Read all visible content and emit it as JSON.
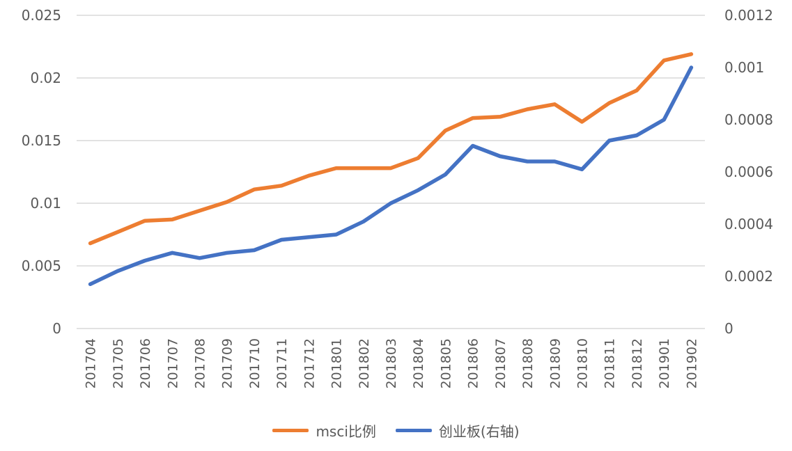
{
  "colors": {
    "msci": "#ED7D31",
    "chinext": "#4472C4",
    "grid": "#D9D9D9",
    "text": "#595959"
  },
  "legend": {
    "msci_label": "msci比例",
    "chinext_label": "创业板(右轴)"
  },
  "chart_data": {
    "type": "line",
    "categories": [
      "201704",
      "201705",
      "201706",
      "201707",
      "201708",
      "201709",
      "201710",
      "201711",
      "201712",
      "201801",
      "201802",
      "201803",
      "201804",
      "201805",
      "201806",
      "201807",
      "201808",
      "201809",
      "201810",
      "201811",
      "201812",
      "201901",
      "201902"
    ],
    "series": [
      {
        "name": "msci比例",
        "axis": "left",
        "color": "#ED7D31",
        "values": [
          0.0068,
          0.0077,
          0.0086,
          0.0087,
          0.0094,
          0.0101,
          0.0111,
          0.0114,
          0.0122,
          0.0128,
          0.0128,
          0.0128,
          0.0136,
          0.0158,
          0.0168,
          0.0169,
          0.0175,
          0.0179,
          0.0165,
          0.018,
          0.019,
          0.0214,
          0.0219
        ]
      },
      {
        "name": "创业板(右轴)",
        "axis": "right",
        "color": "#4472C4",
        "values": [
          0.00017,
          0.00022,
          0.00026,
          0.00029,
          0.00027,
          0.00029,
          0.0003,
          0.00034,
          0.00035,
          0.00036,
          0.00041,
          0.00048,
          0.00053,
          0.00059,
          0.0007,
          0.00066,
          0.00064,
          0.00064,
          0.00061,
          0.00072,
          0.00074,
          0.0008,
          0.001
        ]
      }
    ],
    "y_left": {
      "ylim": [
        0,
        0.025
      ],
      "ticks": [
        0,
        0.005,
        0.01,
        0.015,
        0.02,
        0.025
      ],
      "tick_labels": [
        "0",
        "0.005",
        "0.01",
        "0.015",
        "0.02",
        "0.025"
      ]
    },
    "y_right": {
      "ylim": [
        0,
        0.0012
      ],
      "ticks": [
        0,
        0.0002,
        0.0004,
        0.0006,
        0.0008,
        0.001,
        0.0012
      ],
      "tick_labels": [
        "0",
        "0.0002",
        "0.0004",
        "0.0006",
        "0.0008",
        "0.001",
        "0.0012"
      ]
    },
    "grid": true,
    "legend_position": "bottom"
  }
}
